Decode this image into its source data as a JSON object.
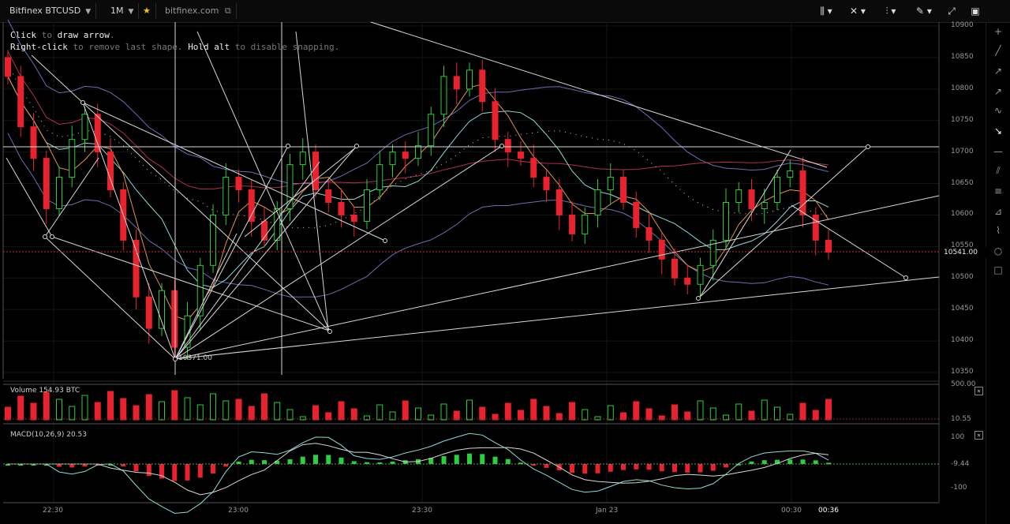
{
  "toolbar": {
    "symbol": "Bitfinex BTCUSD",
    "timeframe": "1M",
    "site": "bitfinex.com",
    "star_icon": "star-icon",
    "tools": [
      "candle-type-icon",
      "indicators-icon",
      "chart-style-icon",
      "draw-pencil-icon",
      "fullscreen-icon",
      "screenshot-icon"
    ]
  },
  "sidebar": {
    "icons": [
      "plus-icon",
      "line-icon",
      "ray-icon",
      "arrow-icon",
      "curve-icon",
      "draw-arrow-icon",
      "horizontal-line-icon",
      "parallel-lines-icon",
      "fib-icon",
      "fan-icon",
      "brush-icon",
      "circle-icon",
      "rectangle-icon"
    ]
  },
  "help": {
    "line1_key": "Click",
    "line1_rest": " to ",
    "line1_action": "draw arrow",
    "line1_end": ".",
    "line2_key": "Right-click",
    "line2_rest": " to remove last shape. ",
    "line2_key2": "Hold alt",
    "line2_end": " to disable snapping."
  },
  "price_axis": {
    "ticks": [
      "10900",
      "10850",
      "10800",
      "10750",
      "10700",
      "10650",
      "10600",
      "10550",
      "10500",
      "10450",
      "10400",
      "10350"
    ],
    "current": "10541.00",
    "low_marker": "10371.00"
  },
  "volume_pane": {
    "label": "Volume",
    "value": "154.93 BTC",
    "axis_top": "500.00",
    "axis_bottom": "10.55"
  },
  "macd_pane": {
    "label": "MACD(10,26,9)",
    "value": "20.53",
    "axis_top": "100",
    "axis_mid": "-9.44",
    "axis_bottom": "-100"
  },
  "time_axis": {
    "labels": [
      "22:30",
      "23:00",
      "23:30",
      "Jan 23",
      "00:30",
      "00:36"
    ]
  },
  "colors": {
    "up": "#2ecc40",
    "down": "#e8232f",
    "bollinger": "#6a6fb0",
    "ema_fast": "#e0924a",
    "ema_mid": "#8fd8d8",
    "ema_slow": "#b03050",
    "background": "#000000"
  },
  "chart_data": {
    "type": "candlestick",
    "symbol": "Bitfinex BTCUSD",
    "interval": "1M",
    "ylim": [
      10350,
      10900
    ],
    "last_price": 10541.0,
    "approx_closes": [
      10820,
      10740,
      10690,
      10610,
      10660,
      10720,
      10760,
      10700,
      10640,
      10560,
      10470,
      10420,
      10480,
      10390,
      10440,
      10520,
      10600,
      10660,
      10640,
      10590,
      10560,
      10610,
      10680,
      10700,
      10640,
      10620,
      10600,
      10590,
      10640,
      10680,
      10700,
      10690,
      10710,
      10760,
      10820,
      10800,
      10830,
      10780,
      10720,
      10700,
      10690,
      10660,
      10640,
      10600,
      10570,
      10600,
      10640,
      10660,
      10620,
      10580,
      10560,
      10530,
      10500,
      10490,
      10520,
      10560,
      10620,
      10640,
      10610,
      10620,
      10660,
      10670,
      10600,
      10560,
      10541
    ]
  }
}
